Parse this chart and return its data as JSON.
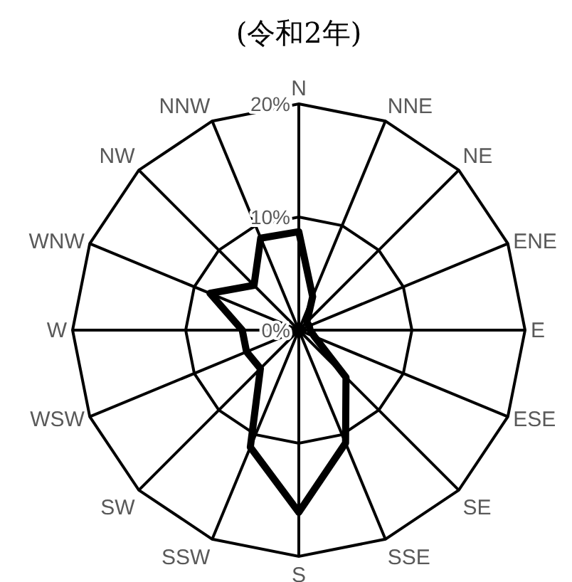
{
  "chart_data": {
    "type": "radar",
    "title": "(令和2年)",
    "categories": [
      "N",
      "NNE",
      "NE",
      "ENE",
      "E",
      "ESE",
      "SE",
      "SSE",
      "S",
      "SSW",
      "SW",
      "WSW",
      "W",
      "WNW",
      "NW",
      "NNW"
    ],
    "series": [
      {
        "color": "#000000",
        "values": [
          8.7,
          3.2,
          1,
          1,
          1,
          1.5,
          5.9,
          10.8,
          16.1,
          11.2,
          4.8,
          5,
          5,
          8.5,
          5.6,
          8.8
        ]
      }
    ],
    "ylim": [
      0,
      20
    ],
    "yticks": [
      {
        "value": 0,
        "label": "0%"
      },
      {
        "value": 10,
        "label": "10%"
      },
      {
        "value": 20,
        "label": "20%"
      }
    ],
    "grid": true
  }
}
